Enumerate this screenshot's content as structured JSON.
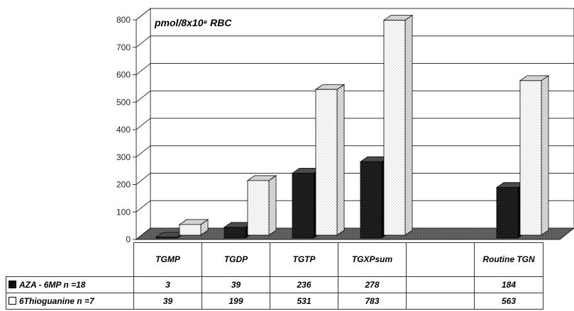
{
  "chart_data": {
    "type": "bar",
    "unit_label": "pmol/8x10⁸ RBC",
    "categories": [
      "TGMP",
      "TGDP",
      "TGTP",
      "TGXPsum",
      "",
      "Routine TGN"
    ],
    "series": [
      {
        "name": "AZA - 6MP n =18",
        "values": [
          3,
          39,
          236,
          278,
          null,
          184
        ],
        "color": "#111111"
      },
      {
        "name": "6Thioguanine n =7",
        "values": [
          39,
          199,
          531,
          783,
          null,
          563
        ],
        "color": "#ffffff"
      }
    ],
    "ylim": [
      0,
      800
    ],
    "yticks": [
      0,
      100,
      200,
      300,
      400,
      500,
      600,
      700,
      800
    ],
    "grid": true,
    "legend": "table"
  }
}
